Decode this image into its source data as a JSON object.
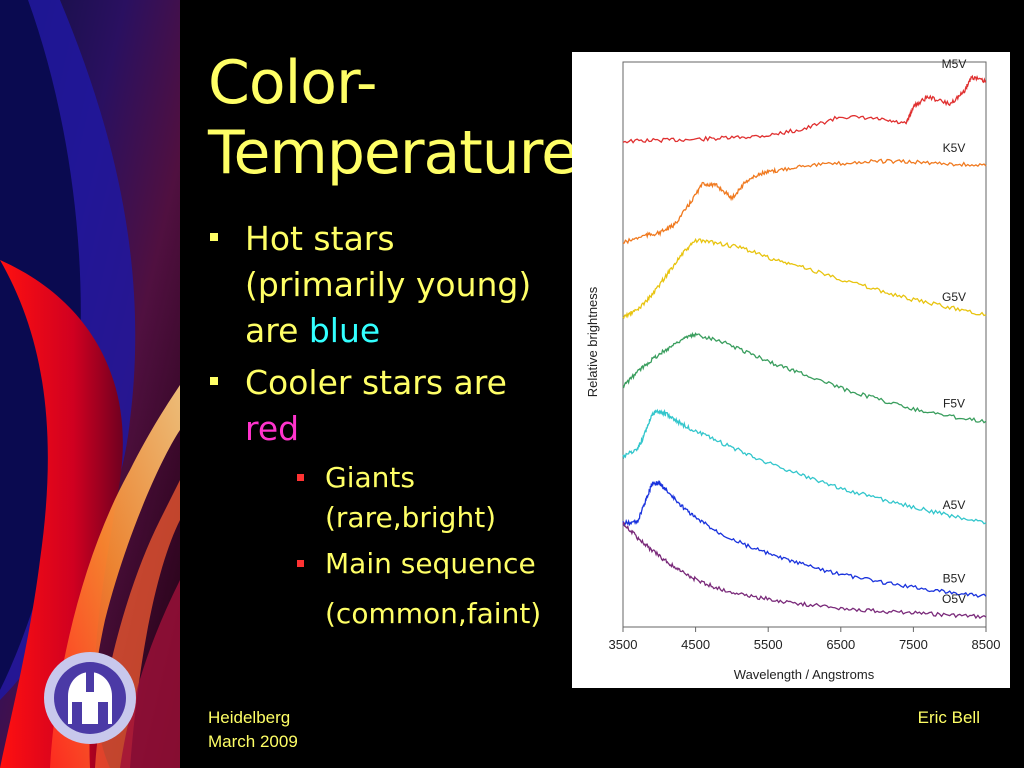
{
  "slide": {
    "title_line1": "Color-",
    "title_line2": "Temperature",
    "bullets": [
      {
        "text": "Hot stars (primarily young) are ",
        "highlight": "blue",
        "highlight_color": "#33ffff"
      },
      {
        "text": "Cooler stars are ",
        "highlight": "red",
        "highlight_color": "#ff33cc"
      }
    ],
    "sub_bullets": [
      "Giants (rare,bright)",
      "Main sequence",
      "(common,faint)"
    ],
    "footer_left_1": "Heidelberg",
    "footer_left_2": "March 2009",
    "footer_right": "Eric Bell",
    "colors": {
      "background": "#000000",
      "text": "#ffff66",
      "sub_bullet_marker": "#ff3333"
    },
    "logo_icon": "observatory-seal-icon"
  },
  "chart_data": {
    "type": "line",
    "xlabel": "Wavelength / Angstroms",
    "ylabel": "Relative brightness",
    "xlim": [
      3500,
      8500
    ],
    "x_ticks": [
      3500,
      4500,
      5500,
      6500,
      7500,
      8500
    ],
    "grid": false,
    "series": [
      {
        "name": "M5V",
        "color": "#e03030",
        "x": [
          3500,
          4000,
          4500,
          5000,
          5500,
          6000,
          6500,
          7000,
          7400,
          7500,
          7700,
          8000,
          8200,
          8300,
          8500
        ],
        "y": [
          9.6,
          9.62,
          9.64,
          9.67,
          9.72,
          9.85,
          10.1,
          10.05,
          9.95,
          10.3,
          10.5,
          10.35,
          10.6,
          10.9,
          10.8
        ]
      },
      {
        "name": "K5V",
        "color": "#f07a20",
        "x": [
          3500,
          3800,
          4000,
          4200,
          4400,
          4600,
          4800,
          5000,
          5200,
          5400,
          5600,
          6000,
          6500,
          7000,
          7500,
          8000,
          8500
        ],
        "y": [
          7.55,
          7.7,
          7.75,
          7.9,
          8.3,
          8.75,
          8.7,
          8.45,
          8.8,
          8.95,
          9.0,
          9.12,
          9.15,
          9.2,
          9.18,
          9.15,
          9.1
        ]
      },
      {
        "name": "G5V",
        "color": "#e8c410",
        "x": [
          3500,
          3700,
          3900,
          4100,
          4300,
          4500,
          4800,
          5200,
          5600,
          6000,
          6500,
          7000,
          7500,
          8000,
          8500
        ],
        "y": [
          6.05,
          6.2,
          6.5,
          6.9,
          7.3,
          7.6,
          7.55,
          7.42,
          7.2,
          7.05,
          6.82,
          6.6,
          6.4,
          6.25,
          6.1
        ]
      },
      {
        "name": "F5V",
        "color": "#3a9e5e",
        "x": [
          3500,
          3700,
          3900,
          4100,
          4300,
          4500,
          4800,
          5200,
          5600,
          6000,
          6500,
          7000,
          7500,
          8000,
          8500
        ],
        "y": [
          4.65,
          4.95,
          5.2,
          5.4,
          5.6,
          5.7,
          5.6,
          5.35,
          5.1,
          4.9,
          4.62,
          4.4,
          4.2,
          4.05,
          3.95
        ]
      },
      {
        "name": "A5V",
        "color": "#33c6cc",
        "x": [
          3500,
          3700,
          3800,
          3900,
          4000,
          4100,
          4300,
          4500,
          4800,
          5200,
          5600,
          6000,
          6500,
          7000,
          7500,
          8000,
          8500
        ],
        "y": [
          3.25,
          3.38,
          3.7,
          4.1,
          4.15,
          4.1,
          3.9,
          3.75,
          3.55,
          3.3,
          3.05,
          2.85,
          2.6,
          2.4,
          2.22,
          2.05,
          1.9
        ]
      },
      {
        "name": "B5V",
        "color": "#1a33dd",
        "x": [
          3500,
          3700,
          3800,
          3900,
          4000,
          4100,
          4300,
          4500,
          4800,
          5200,
          5600,
          6000,
          6500,
          7000,
          7500,
          8000,
          8500
        ],
        "y": [
          1.9,
          1.92,
          2.3,
          2.7,
          2.7,
          2.55,
          2.25,
          2.0,
          1.72,
          1.45,
          1.22,
          1.05,
          0.86,
          0.72,
          0.6,
          0.5,
          0.42
        ]
      },
      {
        "name": "O5V",
        "color": "#7a2a7a",
        "x": [
          3500,
          3700,
          3900,
          4100,
          4300,
          4500,
          4800,
          5200,
          5600,
          6000,
          6500,
          7000,
          7500,
          8000,
          8500
        ],
        "y": [
          1.9,
          1.6,
          1.35,
          1.12,
          0.92,
          0.76,
          0.58,
          0.44,
          0.34,
          0.26,
          0.18,
          0.12,
          0.08,
          0.04,
          0.0
        ]
      }
    ]
  }
}
